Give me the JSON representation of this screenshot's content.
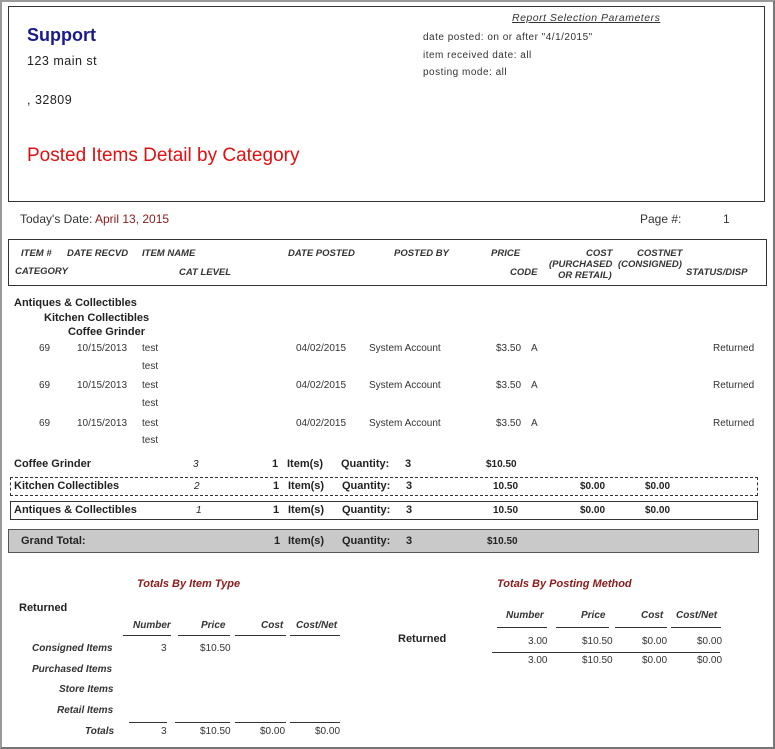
{
  "company": {
    "name": "Support",
    "address1": "123 main st",
    "address2": ", 32809"
  },
  "report_title": "Posted Items Detail by Category",
  "params": {
    "title": "Report Selection Parameters",
    "date_posted": "date posted: on or after \"4/1/2015\"",
    "item_received": "item received date: all",
    "posting_mode": "posting mode: all"
  },
  "today": {
    "label": "Today's Date:",
    "value": "April 13, 2015"
  },
  "page": {
    "label": "Page #:",
    "value": "1"
  },
  "columns": {
    "item_no": "ITEM #",
    "date_recvd": "DATE RECVD",
    "item_name": "ITEM NAME",
    "date_posted": "DATE POSTED",
    "posted_by": "POSTED BY",
    "price": "PRICE",
    "cost": "COST",
    "cost_sub": "(PURCHASED",
    "cost_sub2": "OR RETAIL)",
    "costnet": "COSTNET",
    "costnet_sub": "(CONSIGNED)",
    "category": "CATEGORY",
    "cat_level": "CAT LEVEL",
    "code": "CODE",
    "status": "STATUS/DISP"
  },
  "groups": {
    "level1": "Antiques & Collectibles",
    "level2": "Kitchen Collectibles",
    "level3": "Coffee Grinder"
  },
  "rows": [
    {
      "item": "69",
      "recvd": "10/15/2013",
      "name": "test",
      "name2": "test",
      "posted": "04/02/2015",
      "by": "System Account",
      "price": "$3.50",
      "code": "A",
      "status": "Returned"
    },
    {
      "item": "69",
      "recvd": "10/15/2013",
      "name": "test",
      "name2": "test",
      "posted": "04/02/2015",
      "by": "System Account",
      "price": "$3.50",
      "code": "A",
      "status": "Returned"
    },
    {
      "item": "69",
      "recvd": "10/15/2013",
      "name": "test",
      "name2": "test",
      "posted": "04/02/2015",
      "by": "System Account",
      "price": "$3.50",
      "code": "A",
      "status": "Returned"
    }
  ],
  "subtotals": [
    {
      "name": "Coffee Grinder",
      "level": "3",
      "count": "1",
      "items_label": "Item(s)",
      "qty_label": "Quantity:",
      "qty": "3",
      "price": "$10.50",
      "cost": "",
      "costnet": ""
    },
    {
      "name": "Kitchen Collectibles",
      "level": "2",
      "count": "1",
      "items_label": "Item(s)",
      "qty_label": "Quantity:",
      "qty": "3",
      "price": "10.50",
      "cost": "$0.00",
      "costnet": "$0.00"
    },
    {
      "name": "Antiques & Collectibles",
      "level": "1",
      "count": "1",
      "items_label": "Item(s)",
      "qty_label": "Quantity:",
      "qty": "3",
      "price": "10.50",
      "cost": "$0.00",
      "costnet": "$0.00"
    }
  ],
  "grand": {
    "label": "Grand Total:",
    "count": "1",
    "items_label": "Item(s)",
    "qty_label": "Quantity:",
    "qty": "3",
    "price": "$10.50"
  },
  "by_type": {
    "title": "Totals By Item Type",
    "group": "Returned",
    "headers": [
      "Number",
      "Price",
      "Cost",
      "Cost/Net"
    ],
    "rows": [
      {
        "label": "Consigned Items",
        "number": "3",
        "price": "$10.50",
        "cost": "",
        "costnet": ""
      },
      {
        "label": "Purchased Items",
        "number": "",
        "price": "",
        "cost": "",
        "costnet": ""
      },
      {
        "label": "Store Items",
        "number": "",
        "price": "",
        "cost": "",
        "costnet": ""
      },
      {
        "label": "Retail Items",
        "number": "",
        "price": "",
        "cost": "",
        "costnet": ""
      }
    ],
    "totals": {
      "label": "Totals",
      "number": "3",
      "price": "$10.50",
      "cost": "$0.00",
      "costnet": "$0.00"
    }
  },
  "by_method": {
    "title": "Totals By Posting Method",
    "group": "Returned",
    "headers": [
      "Number",
      "Price",
      "Cost",
      "Cost/Net"
    ],
    "row": {
      "number": "3.00",
      "price": "$10.50",
      "cost": "$0.00",
      "costnet": "$0.00"
    },
    "total": {
      "number": "3.00",
      "price": "$10.50",
      "cost": "$0.00",
      "costnet": "$0.00"
    }
  }
}
